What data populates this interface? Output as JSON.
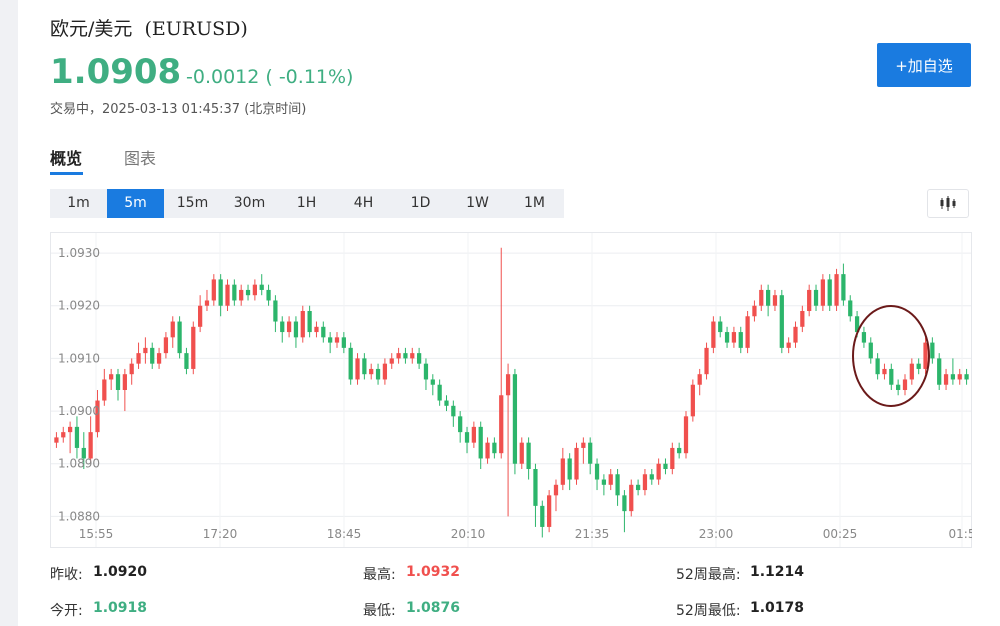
{
  "header": {
    "title": "欧元/美元",
    "code": "(EURUSD)",
    "price": "1.0908",
    "change": "-0.0012 ( -0.11%)",
    "status": "交易中，2025-03-13 01:45:37 (北京时间)",
    "add_button": "+加自选",
    "price_color": "#3fae82",
    "accent": "#1a7be0"
  },
  "tabs": [
    {
      "label": "概览",
      "active": true
    },
    {
      "label": "图表",
      "active": false
    }
  ],
  "intervals": [
    "1m",
    "5m",
    "15m",
    "30m",
    "1H",
    "4H",
    "1D",
    "1W",
    "1M"
  ],
  "active_interval": "5m",
  "chart_type_icon": "candlestick-icon",
  "stats": {
    "prev_close_label": "昨收:",
    "prev_close": "1.0920",
    "open_label": "今开:",
    "open": "1.0918",
    "high_label": "最高:",
    "high": "1.0932",
    "low_label": "最低:",
    "low": "1.0876",
    "w52_high_label": "52周最高:",
    "w52_high": "1.1214",
    "w52_low_label": "52周最低:",
    "w52_low": "1.0178"
  },
  "chart_data": {
    "type": "candlestick",
    "y_ticks": [
      "1.0930",
      "1.0920",
      "1.0910",
      "1.0900",
      "1.0890",
      "1.0880"
    ],
    "x_ticks": [
      "15:55",
      "17:20",
      "18:45",
      "20:10",
      "21:35",
      "23:00",
      "00:25",
      "01:5"
    ],
    "ylim": [
      1.0874,
      1.0934
    ],
    "grid": true,
    "up_color": "#f0504e",
    "down_color": "#2cb56b",
    "annotation": "circle",
    "candles": [
      [
        1.0894,
        1.0895,
        1.0896,
        1.0893
      ],
      [
        1.0895,
        1.0896,
        1.0897,
        1.0894
      ],
      [
        1.0896,
        1.0897,
        1.0898,
        1.0892
      ],
      [
        1.0897,
        1.0893,
        1.0899,
        1.0891
      ],
      [
        1.0893,
        1.0891,
        1.0896,
        1.0889
      ],
      [
        1.0891,
        1.0896,
        1.0899,
        1.089
      ],
      [
        1.0896,
        1.0902,
        1.0904,
        1.0895
      ],
      [
        1.0902,
        1.0906,
        1.0908,
        1.0901
      ],
      [
        1.0906,
        1.0907,
        1.0908,
        1.0904
      ],
      [
        1.0907,
        1.0904,
        1.0908,
        1.0902
      ],
      [
        1.0904,
        1.0907,
        1.0908,
        1.09
      ],
      [
        1.0907,
        1.0909,
        1.091,
        1.0905
      ],
      [
        1.0909,
        1.0911,
        1.0913,
        1.0908
      ],
      [
        1.0911,
        1.0912,
        1.0914,
        1.0909
      ],
      [
        1.0912,
        1.0909,
        1.0913,
        1.0908
      ],
      [
        1.0909,
        1.0911,
        1.0912,
        1.0908
      ],
      [
        1.0911,
        1.0914,
        1.0915,
        1.091
      ],
      [
        1.0914,
        1.0917,
        1.0918,
        1.0912
      ],
      [
        1.0917,
        1.0911,
        1.0918,
        1.091
      ],
      [
        1.0911,
        1.0908,
        1.0912,
        1.0907
      ],
      [
        1.0908,
        1.0916,
        1.0917,
        1.0907
      ],
      [
        1.0916,
        1.092,
        1.0922,
        1.0915
      ],
      [
        1.092,
        1.0921,
        1.0923,
        1.0919
      ],
      [
        1.0921,
        1.0925,
        1.0926,
        1.092
      ],
      [
        1.0925,
        1.092,
        1.0926,
        1.0918
      ],
      [
        1.092,
        1.0924,
        1.0925,
        1.0919
      ],
      [
        1.0924,
        1.0921,
        1.0925,
        1.092
      ],
      [
        1.0921,
        1.0923,
        1.0924,
        1.092
      ],
      [
        1.0923,
        1.0922,
        1.0924,
        1.0921
      ],
      [
        1.0922,
        1.0924,
        1.0925,
        1.0921
      ],
      [
        1.0924,
        1.0923,
        1.0926,
        1.0922
      ],
      [
        1.0923,
        1.0921,
        1.0924,
        1.092
      ],
      [
        1.0921,
        1.0917,
        1.0922,
        1.0915
      ],
      [
        1.0917,
        1.0915,
        1.0918,
        1.0913
      ],
      [
        1.0915,
        1.0917,
        1.0918,
        1.0914
      ],
      [
        1.0917,
        1.0914,
        1.0918,
        1.0912
      ],
      [
        1.0914,
        1.0919,
        1.092,
        1.0913
      ],
      [
        1.0919,
        1.0915,
        1.092,
        1.0914
      ],
      [
        1.0915,
        1.0916,
        1.0917,
        1.0914
      ],
      [
        1.0916,
        1.0914,
        1.0917,
        1.0913
      ],
      [
        1.0914,
        1.0913,
        1.0915,
        1.0911
      ],
      [
        1.0913,
        1.0914,
        1.0915,
        1.0912
      ],
      [
        1.0914,
        1.0912,
        1.0915,
        1.0911
      ],
      [
        1.0912,
        1.0906,
        1.0913,
        1.0905
      ],
      [
        1.0906,
        1.091,
        1.0911,
        1.0905
      ],
      [
        1.091,
        1.0907,
        1.0911,
        1.0906
      ],
      [
        1.0907,
        1.0908,
        1.0909,
        1.0906
      ],
      [
        1.0908,
        1.0906,
        1.0909,
        1.0905
      ],
      [
        1.0906,
        1.0909,
        1.091,
        1.0905
      ],
      [
        1.0909,
        1.091,
        1.0911,
        1.0908
      ],
      [
        1.091,
        1.0911,
        1.0912,
        1.0909
      ],
      [
        1.0911,
        1.091,
        1.0912,
        1.0909
      ],
      [
        1.091,
        1.0911,
        1.0912,
        1.0909
      ],
      [
        1.0911,
        1.0909,
        1.0912,
        1.0908
      ],
      [
        1.0909,
        1.0906,
        1.091,
        1.0904
      ],
      [
        1.0906,
        1.0905,
        1.0907,
        1.0903
      ],
      [
        1.0905,
        1.0902,
        1.0906,
        1.0901
      ],
      [
        1.0902,
        1.0901,
        1.0903,
        1.09
      ],
      [
        1.0901,
        1.0899,
        1.0902,
        1.0897
      ],
      [
        1.0899,
        1.0896,
        1.09,
        1.0894
      ],
      [
        1.0896,
        1.0894,
        1.0897,
        1.0892
      ],
      [
        1.0894,
        1.0897,
        1.0898,
        1.0893
      ],
      [
        1.0897,
        1.0891,
        1.0898,
        1.0889
      ],
      [
        1.0891,
        1.0894,
        1.0895,
        1.089
      ],
      [
        1.0894,
        1.0892,
        1.0895,
        1.0891
      ],
      [
        1.0892,
        1.0903,
        1.0931,
        1.0891
      ],
      [
        1.0903,
        1.0907,
        1.0909,
        1.088
      ],
      [
        1.0907,
        1.089,
        1.0908,
        1.0888
      ],
      [
        1.089,
        1.0894,
        1.0895,
        1.0889
      ],
      [
        1.0894,
        1.0889,
        1.0895,
        1.0887
      ],
      [
        1.0889,
        1.0882,
        1.089,
        1.0878
      ],
      [
        1.0882,
        1.0878,
        1.0883,
        1.0876
      ],
      [
        1.0878,
        1.0884,
        1.0885,
        1.0877
      ],
      [
        1.0884,
        1.0886,
        1.0887,
        1.0881
      ],
      [
        1.0886,
        1.0891,
        1.0893,
        1.0885
      ],
      [
        1.0891,
        1.0887,
        1.0892,
        1.0885
      ],
      [
        1.0887,
        1.0893,
        1.0894,
        1.0886
      ],
      [
        1.0893,
        1.0894,
        1.0895,
        1.089
      ],
      [
        1.0894,
        1.089,
        1.0895,
        1.0888
      ],
      [
        1.089,
        1.0887,
        1.0891,
        1.0885
      ],
      [
        1.0887,
        1.0886,
        1.0888,
        1.0884
      ],
      [
        1.0886,
        1.0888,
        1.0889,
        1.0885
      ],
      [
        1.0888,
        1.0884,
        1.0889,
        1.0882
      ],
      [
        1.0884,
        1.0881,
        1.0885,
        1.0877
      ],
      [
        1.0881,
        1.0886,
        1.0887,
        1.088
      ],
      [
        1.0886,
        1.0885,
        1.0887,
        1.0884
      ],
      [
        1.0885,
        1.0888,
        1.0889,
        1.0884
      ],
      [
        1.0888,
        1.0887,
        1.0889,
        1.0886
      ],
      [
        1.0887,
        1.089,
        1.0891,
        1.0886
      ],
      [
        1.089,
        1.0889,
        1.0891,
        1.0888
      ],
      [
        1.0889,
        1.0893,
        1.0894,
        1.0888
      ],
      [
        1.0893,
        1.0892,
        1.0894,
        1.0891
      ],
      [
        1.0892,
        1.0899,
        1.09,
        1.0891
      ],
      [
        1.0899,
        1.0905,
        1.0906,
        1.0898
      ],
      [
        1.0905,
        1.0907,
        1.0908,
        1.0903
      ],
      [
        1.0907,
        1.0912,
        1.0913,
        1.0906
      ],
      [
        1.0912,
        1.0917,
        1.0918,
        1.0911
      ],
      [
        1.0917,
        1.0915,
        1.0918,
        1.0914
      ],
      [
        1.0915,
        1.0913,
        1.0916,
        1.0912
      ],
      [
        1.0913,
        1.0915,
        1.0916,
        1.0912
      ],
      [
        1.0915,
        1.0912,
        1.0916,
        1.0911
      ],
      [
        1.0912,
        1.0918,
        1.0919,
        1.0911
      ],
      [
        1.0918,
        1.092,
        1.0921,
        1.0917
      ],
      [
        1.092,
        1.0923,
        1.0924,
        1.0919
      ],
      [
        1.0923,
        1.092,
        1.0924,
        1.0918
      ],
      [
        1.092,
        1.0922,
        1.0923,
        1.0919
      ],
      [
        1.0922,
        1.0912,
        1.0923,
        1.0911
      ],
      [
        1.0912,
        1.0913,
        1.0914,
        1.0911
      ],
      [
        1.0913,
        1.0916,
        1.0917,
        1.0912
      ],
      [
        1.0916,
        1.0919,
        1.092,
        1.0915
      ],
      [
        1.0919,
        1.0923,
        1.0924,
        1.0918
      ],
      [
        1.0923,
        1.092,
        1.0924,
        1.0919
      ],
      [
        1.092,
        1.0925,
        1.0926,
        1.0919
      ],
      [
        1.0925,
        1.092,
        1.0926,
        1.0919
      ],
      [
        1.092,
        1.0926,
        1.0927,
        1.0919
      ],
      [
        1.0926,
        1.0921,
        1.0928,
        1.092
      ],
      [
        1.0921,
        1.0918,
        1.0922,
        1.0917
      ],
      [
        1.0918,
        1.0915,
        1.0919,
        1.0914
      ],
      [
        1.0915,
        1.0913,
        1.0916,
        1.0912
      ],
      [
        1.0913,
        1.091,
        1.0914,
        1.0909
      ],
      [
        1.091,
        1.0907,
        1.0911,
        1.0906
      ],
      [
        1.0907,
        1.0908,
        1.0909,
        1.0906
      ],
      [
        1.0908,
        1.0905,
        1.0909,
        1.0904
      ],
      [
        1.0905,
        1.0904,
        1.0906,
        1.0903
      ],
      [
        1.0904,
        1.0906,
        1.0907,
        1.0903
      ],
      [
        1.0906,
        1.0909,
        1.091,
        1.0905
      ],
      [
        1.0909,
        1.0908,
        1.091,
        1.0907
      ],
      [
        1.0908,
        1.0913,
        1.0914,
        1.0907
      ],
      [
        1.0913,
        1.091,
        1.0914,
        1.0909
      ],
      [
        1.091,
        1.0905,
        1.0911,
        1.0904
      ],
      [
        1.0905,
        1.0907,
        1.0908,
        1.0904
      ],
      [
        1.0907,
        1.0906,
        1.091,
        1.0905
      ],
      [
        1.0906,
        1.0907,
        1.0908,
        1.0905
      ],
      [
        1.0907,
        1.0906,
        1.0908,
        1.0905
      ]
    ]
  }
}
